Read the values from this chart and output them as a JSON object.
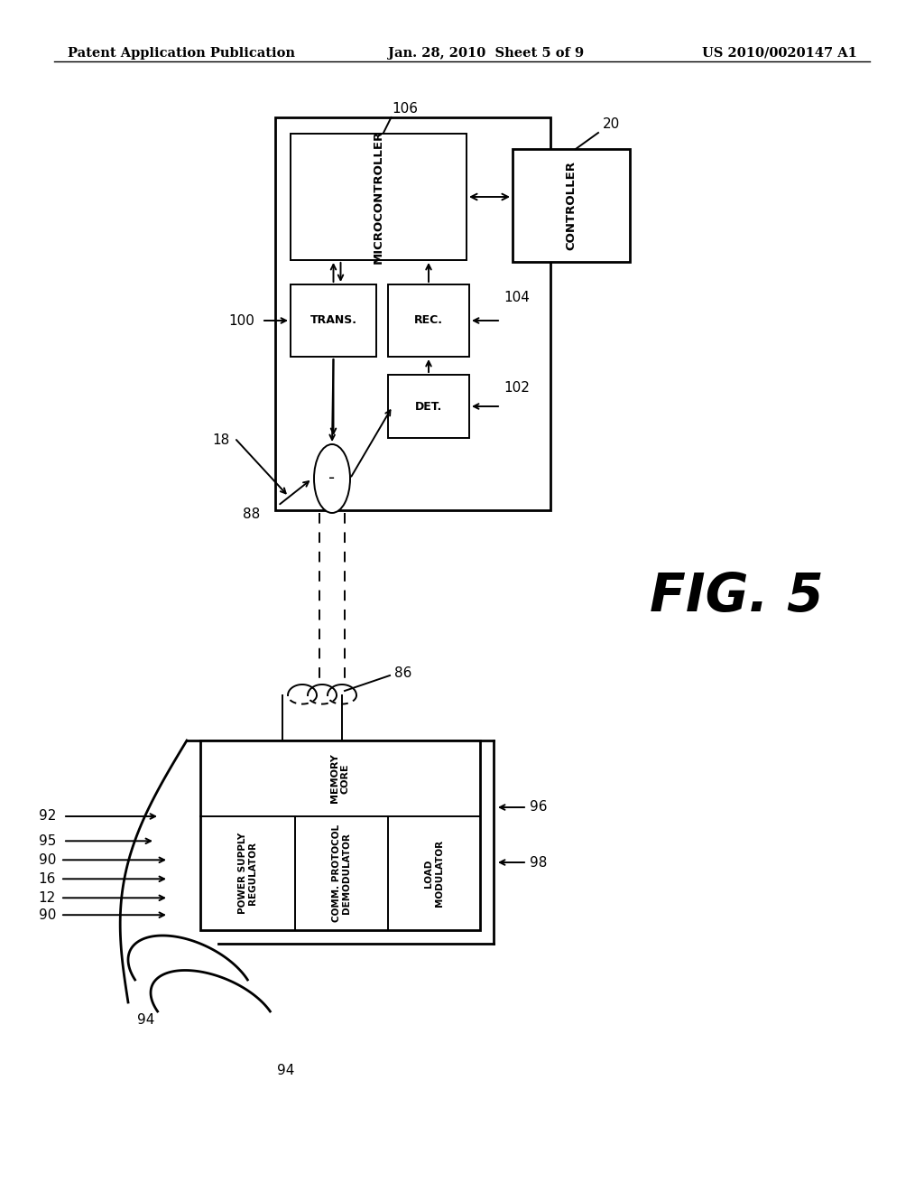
{
  "bg_color": "#ffffff",
  "header_left": "Patent Application Publication",
  "header_center": "Jan. 28, 2010  Sheet 5 of 9",
  "header_right": "US 2010/0020147 A1",
  "fig_label": "FIG. 5"
}
